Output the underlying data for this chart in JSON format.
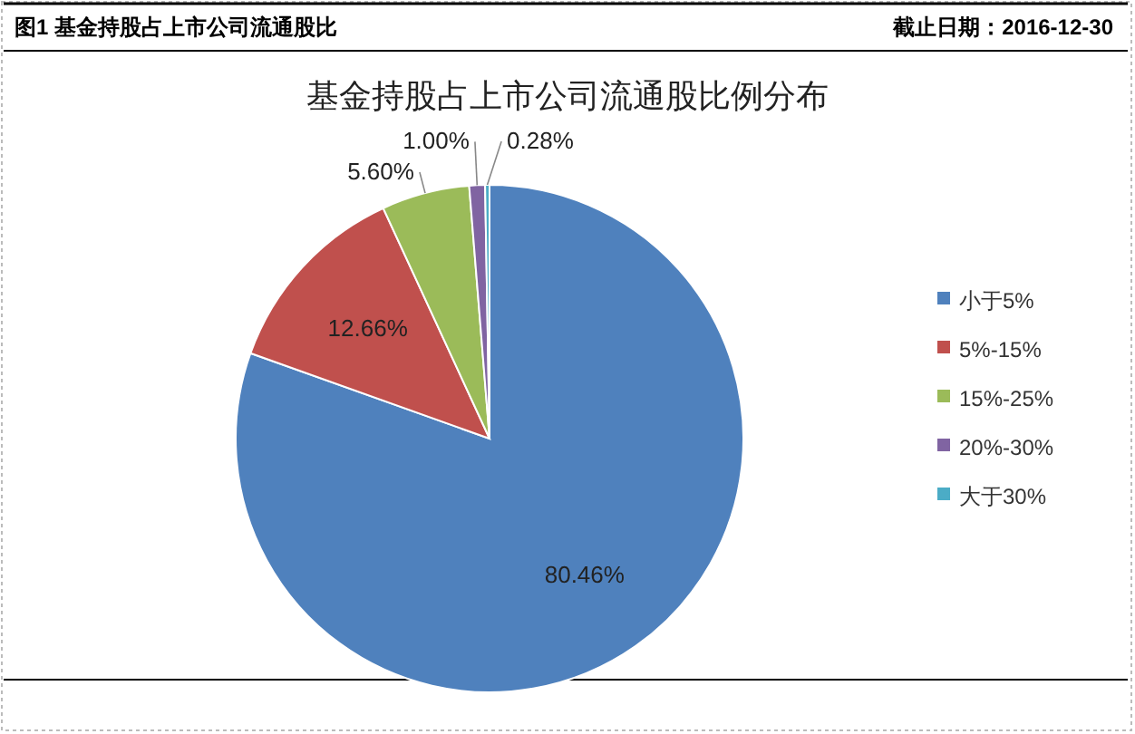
{
  "chart_data": {
    "type": "pie",
    "title": "基金持股占上市公司流通股比例分布",
    "annotations": [
      "图1 基金持股占上市公司流通股比",
      "截止日期：2016-12-30"
    ],
    "categories": [
      "小于5%",
      "5%-15%",
      "15%-25%",
      "20%-30%",
      "大于30%"
    ],
    "values": [
      80.46,
      12.66,
      5.6,
      1.0,
      0.28
    ],
    "value_labels": [
      "80.46%",
      "12.66%",
      "5.60%",
      "1.00%",
      "0.28%"
    ],
    "colors": [
      "#4f81bd",
      "#c0504d",
      "#9bbb59",
      "#8064a2",
      "#4bacc6"
    ],
    "legend": "right"
  }
}
